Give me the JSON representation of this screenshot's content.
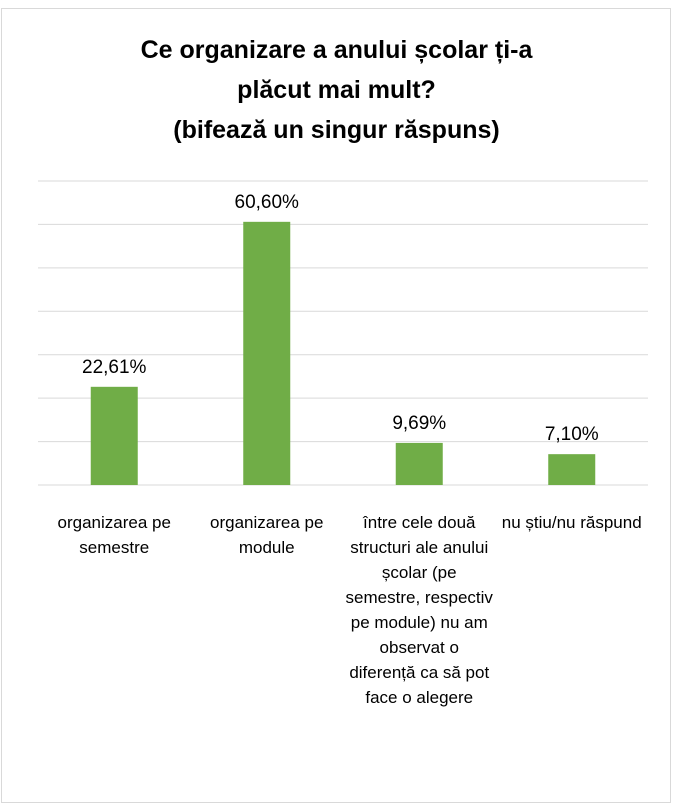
{
  "chart_data": {
    "type": "bar",
    "title": "Ce organizare a anului școlar ți-a\nplăcut mai mult?\n(bifează un singur răspuns)",
    "categories": [
      "organizarea pe semestre",
      "organizarea pe module",
      "între cele două structuri ale anului școlar (pe semestre, respectiv pe module) nu am observat o diferență ca să pot face o alegere",
      "nu știu/nu răspund"
    ],
    "values": [
      22.61,
      60.6,
      9.69,
      7.1
    ],
    "value_labels": [
      "22,61%",
      "60,60%",
      "9,69%",
      "7,10%"
    ],
    "color": "#70ad47",
    "ylim": [
      0,
      70
    ],
    "yticks": [
      0,
      10,
      20,
      30,
      40,
      50,
      60,
      70
    ],
    "grid": true
  }
}
